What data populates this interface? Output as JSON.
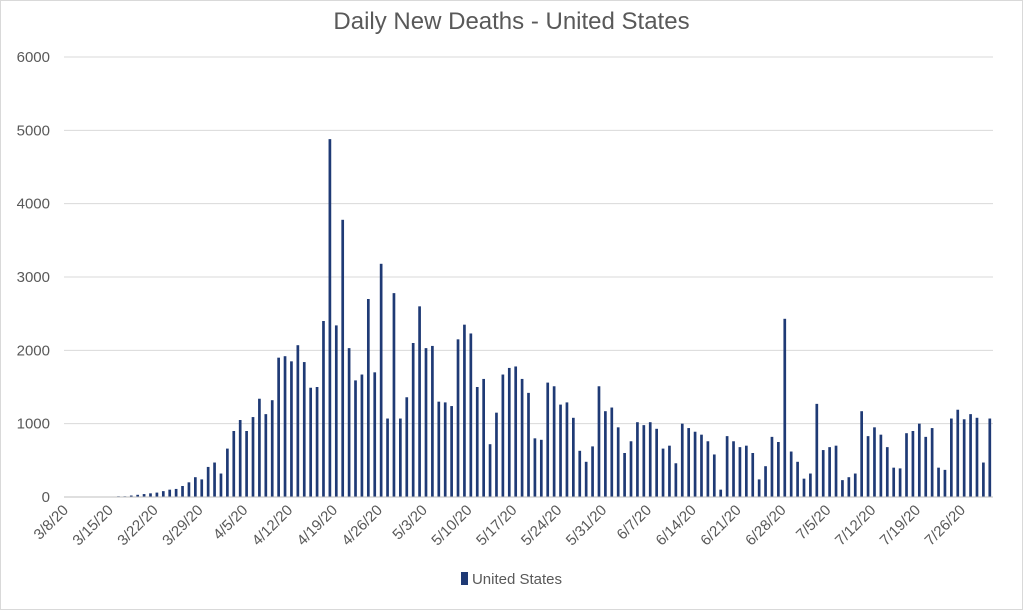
{
  "chart_data": {
    "type": "bar",
    "title": "Daily New Deaths - United States",
    "xlabel": "",
    "ylabel": "",
    "ylim": [
      0,
      6000
    ],
    "yticks": [
      "0",
      "1000",
      "2000",
      "3000",
      "4000",
      "5000",
      "6000"
    ],
    "grid": true,
    "legend_position": "bottom",
    "bar_color": "#1f3a75",
    "xtick_labels": [
      "3/8/20",
      "3/15/20",
      "3/22/20",
      "3/29/20",
      "4/5/20",
      "4/12/20",
      "4/19/20",
      "4/26/20",
      "5/3/20",
      "5/10/20",
      "5/17/20",
      "5/24/20",
      "5/31/20",
      "6/7/20",
      "6/14/20",
      "6/21/20",
      "6/28/20",
      "7/5/20",
      "7/12/20",
      "7/19/20",
      "7/26/20"
    ],
    "series": [
      {
        "name": "United States",
        "start_date": "3/8/20",
        "values": [
          0,
          0,
          0,
          0,
          0,
          0,
          0,
          0,
          10,
          10,
          20,
          30,
          40,
          50,
          60,
          80,
          100,
          110,
          150,
          200,
          270,
          240,
          410,
          470,
          320,
          660,
          900,
          1050,
          900,
          1090,
          1340,
          1130,
          1320,
          1900,
          1920,
          1850,
          2070,
          1840,
          1490,
          1500,
          2400,
          4880,
          2340,
          3780,
          2030,
          1590,
          1670,
          2700,
          1700,
          3180,
          1070,
          2780,
          1070,
          1360,
          2100,
          2600,
          2030,
          2060,
          1300,
          1290,
          1240,
          2150,
          2350,
          2230,
          1500,
          1610,
          720,
          1150,
          1670,
          1760,
          1780,
          1610,
          1420,
          800,
          780,
          1560,
          1510,
          1260,
          1290,
          1080,
          630,
          480,
          690,
          1510,
          1170,
          1220,
          950,
          600,
          760,
          1020,
          980,
          1020,
          930,
          660,
          700,
          460,
          1000,
          940,
          890,
          850,
          760,
          580,
          100,
          830,
          760,
          680,
          700,
          600,
          240,
          420,
          820,
          750,
          2430,
          620,
          480,
          250,
          320,
          1270,
          640,
          680,
          700,
          230,
          270,
          320,
          1170,
          830,
          950,
          850,
          680,
          400,
          390,
          870,
          900,
          1000,
          820,
          940,
          400,
          370,
          1070,
          1190,
          1060,
          1130,
          1080,
          470,
          1070
        ]
      }
    ]
  }
}
